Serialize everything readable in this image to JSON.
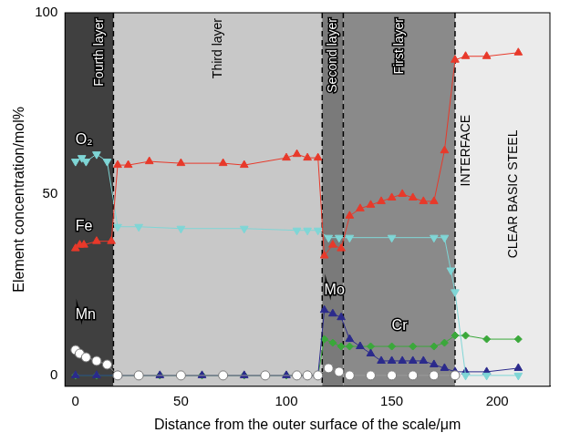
{
  "chart_data": {
    "type": "line",
    "x_label": "Distance from the outer surface of the scale/μm",
    "y_label": "Element concentration/mol%",
    "xlim": [
      -5,
      225
    ],
    "xticks": [
      0,
      50,
      100,
      150,
      200
    ],
    "ylim": [
      -3,
      100
    ],
    "yticks": [
      0,
      50,
      100
    ],
    "grid": false,
    "series": [
      {
        "name": "Fe",
        "color": "#e8392a",
        "marker": "triangle",
        "x": [
          0,
          2,
          4,
          10,
          17,
          20,
          25,
          35,
          50,
          70,
          80,
          100,
          105,
          110,
          115,
          118,
          122,
          126,
          130,
          135,
          140,
          145,
          150,
          155,
          160,
          165,
          170,
          175,
          180,
          185,
          195,
          210
        ],
        "values": [
          35,
          36,
          36,
          37,
          37,
          58,
          58,
          59,
          58.5,
          58.5,
          58,
          60,
          61,
          60,
          60,
          33,
          36,
          35,
          44,
          46,
          47,
          48,
          49,
          50,
          49,
          48,
          48,
          62,
          87,
          88,
          88,
          89
        ]
      },
      {
        "name": "O₂",
        "color": "#7fd6d6",
        "marker": "triangle-down",
        "x": [
          0,
          3,
          5,
          10,
          15,
          20,
          30,
          50,
          80,
          105,
          110,
          115,
          120,
          125,
          130,
          150,
          170,
          175,
          178,
          180,
          185,
          195,
          210
        ],
        "values": [
          59,
          60,
          59,
          61,
          59,
          41,
          41,
          40.5,
          40.5,
          40,
          40,
          40,
          38,
          38,
          38,
          38,
          38,
          38,
          29,
          23,
          0,
          0,
          0
        ]
      },
      {
        "name": "Mn",
        "color": "#ffffff",
        "marker": "circle",
        "x": [
          0,
          2,
          5,
          10,
          15,
          20,
          30,
          50,
          70,
          90,
          105,
          110,
          115,
          120,
          125,
          130,
          140,
          150,
          160,
          170,
          180
        ],
        "values": [
          7,
          6,
          5,
          4,
          3,
          0,
          0,
          0,
          0,
          0,
          0,
          0,
          0,
          2,
          1,
          0,
          0,
          0,
          0,
          0,
          0
        ]
      },
      {
        "name": "Mo",
        "color": "#2b2a8c",
        "marker": "triangle",
        "x": [
          0,
          10,
          20,
          40,
          60,
          80,
          100,
          110,
          115,
          118,
          122,
          126,
          130,
          135,
          140,
          145,
          150,
          155,
          160,
          165,
          170,
          175,
          180,
          185,
          195,
          210
        ],
        "values": [
          0,
          0,
          0,
          0,
          0,
          0,
          0,
          0,
          0,
          18,
          17,
          16,
          10,
          8,
          6,
          4,
          4,
          4,
          4,
          4,
          3,
          2,
          1,
          1,
          1,
          2
        ]
      },
      {
        "name": "Cr",
        "color": "#3aa83a",
        "marker": "diamond",
        "x": [
          0,
          10,
          20,
          40,
          60,
          80,
          100,
          110,
          115,
          118,
          122,
          126,
          130,
          140,
          150,
          160,
          170,
          175,
          180,
          185,
          195,
          210
        ],
        "values": [
          0,
          0,
          0,
          0,
          0,
          0,
          0,
          0,
          0,
          10,
          9,
          8,
          8,
          8,
          8,
          8,
          8,
          9,
          11,
          11,
          10,
          10
        ]
      }
    ],
    "layers": [
      {
        "label": "Fourth layer",
        "from": -5,
        "to": 18,
        "color": "#404040"
      },
      {
        "label": "Third layer",
        "from": 18,
        "to": 117,
        "color": "#c8c8c8"
      },
      {
        "label": "Second layer",
        "from": 117,
        "to": 127,
        "color": "#7a7a7a"
      },
      {
        "label": "First layer",
        "from": 127,
        "to": 180,
        "color": "#8a8a8a"
      },
      {
        "label": "CLEAR BASIC STEEL",
        "from": 180,
        "to": 225,
        "color": "#ebebeb"
      }
    ],
    "boundaries": [
      18,
      117,
      127,
      180
    ],
    "annotations": [
      {
        "text": "INTERFACE",
        "x": 180
      }
    ]
  }
}
